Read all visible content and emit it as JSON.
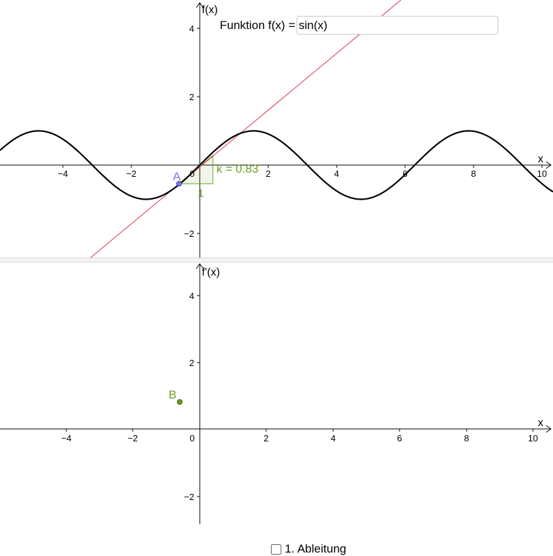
{
  "top_graph": {
    "y_axis_label": "f(x)",
    "x_axis_label": "x",
    "x_ticks": [
      "−4",
      "−2",
      "0",
      "2",
      "4",
      "6",
      "8",
      "10"
    ],
    "y_ticks": [
      "4",
      "2",
      "−2"
    ],
    "function_input": {
      "label": "Funktion f(x) =",
      "value": "sin(x)"
    },
    "point_A": {
      "label": "A",
      "x": -0.6,
      "y": -0.56,
      "color": "#7b7bf0"
    },
    "slope_label": "k = 0.83",
    "slope_run_label": "1",
    "slope_color": "#6aa121",
    "tangent_color": "#e0304e",
    "curve_color": "#000000"
  },
  "bottom_graph": {
    "y_axis_label": "f'(x)",
    "x_axis_label": "x",
    "x_ticks": [
      "−4",
      "−2",
      "0",
      "2",
      "4",
      "6",
      "8",
      "10"
    ],
    "y_ticks": [
      "4",
      "2",
      "−2"
    ],
    "derivative_checkbox": {
      "label": "1. Ableitung",
      "checked": false
    },
    "point_B": {
      "label": "B",
      "x": -0.6,
      "y": 0.83,
      "color": "#6aa121"
    }
  }
}
